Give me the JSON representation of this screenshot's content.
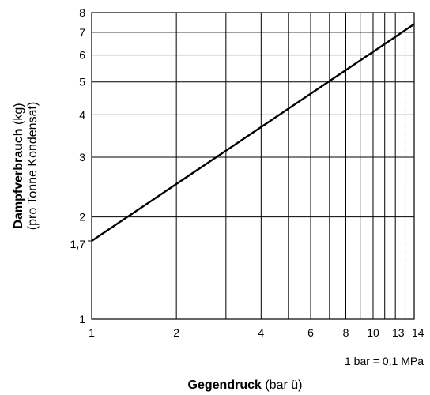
{
  "chart_data": {
    "type": "line",
    "x_scale": "log",
    "y_scale": "log",
    "xlim": [
      1,
      14
    ],
    "ylim": [
      1,
      8
    ],
    "x_grid": [
      1,
      2,
      3,
      4,
      5,
      6,
      7,
      8,
      9,
      10,
      11,
      12,
      13,
      14
    ],
    "y_grid": [
      1,
      2,
      3,
      4,
      5,
      6,
      7,
      8
    ],
    "x_ticks": [
      {
        "value": 1,
        "label": "1"
      },
      {
        "value": 2,
        "label": "2"
      },
      {
        "value": 4,
        "label": "4"
      },
      {
        "value": 6,
        "label": "6"
      },
      {
        "value": 8,
        "label": "8"
      },
      {
        "value": 10,
        "label": "10"
      },
      {
        "value": 13,
        "label": "13"
      },
      {
        "value": 14,
        "label": "14"
      }
    ],
    "y_ticks": [
      {
        "value": 1,
        "label": "1"
      },
      {
        "value": 1.7,
        "label": "1,7"
      },
      {
        "value": 2,
        "label": "2"
      },
      {
        "value": 3,
        "label": "3"
      },
      {
        "value": 4,
        "label": "4"
      },
      {
        "value": 5,
        "label": "5"
      },
      {
        "value": 6,
        "label": "6"
      },
      {
        "value": 7,
        "label": "7"
      },
      {
        "value": 8,
        "label": "8"
      }
    ],
    "dashed_x": 13,
    "series": [
      {
        "x": [
          1,
          14
        ],
        "y": [
          1.7,
          7.4
        ]
      }
    ],
    "xlabel_bold": "Gegendruck",
    "xlabel_rest": " (bar ü)",
    "ylabel_bold": "Dampfverbrauch",
    "ylabel_rest": " (kg)",
    "ylabel_line2": "(pro Tonne Kondensat)",
    "note": "1 bar = 0,1 MPa",
    "grid": true
  }
}
